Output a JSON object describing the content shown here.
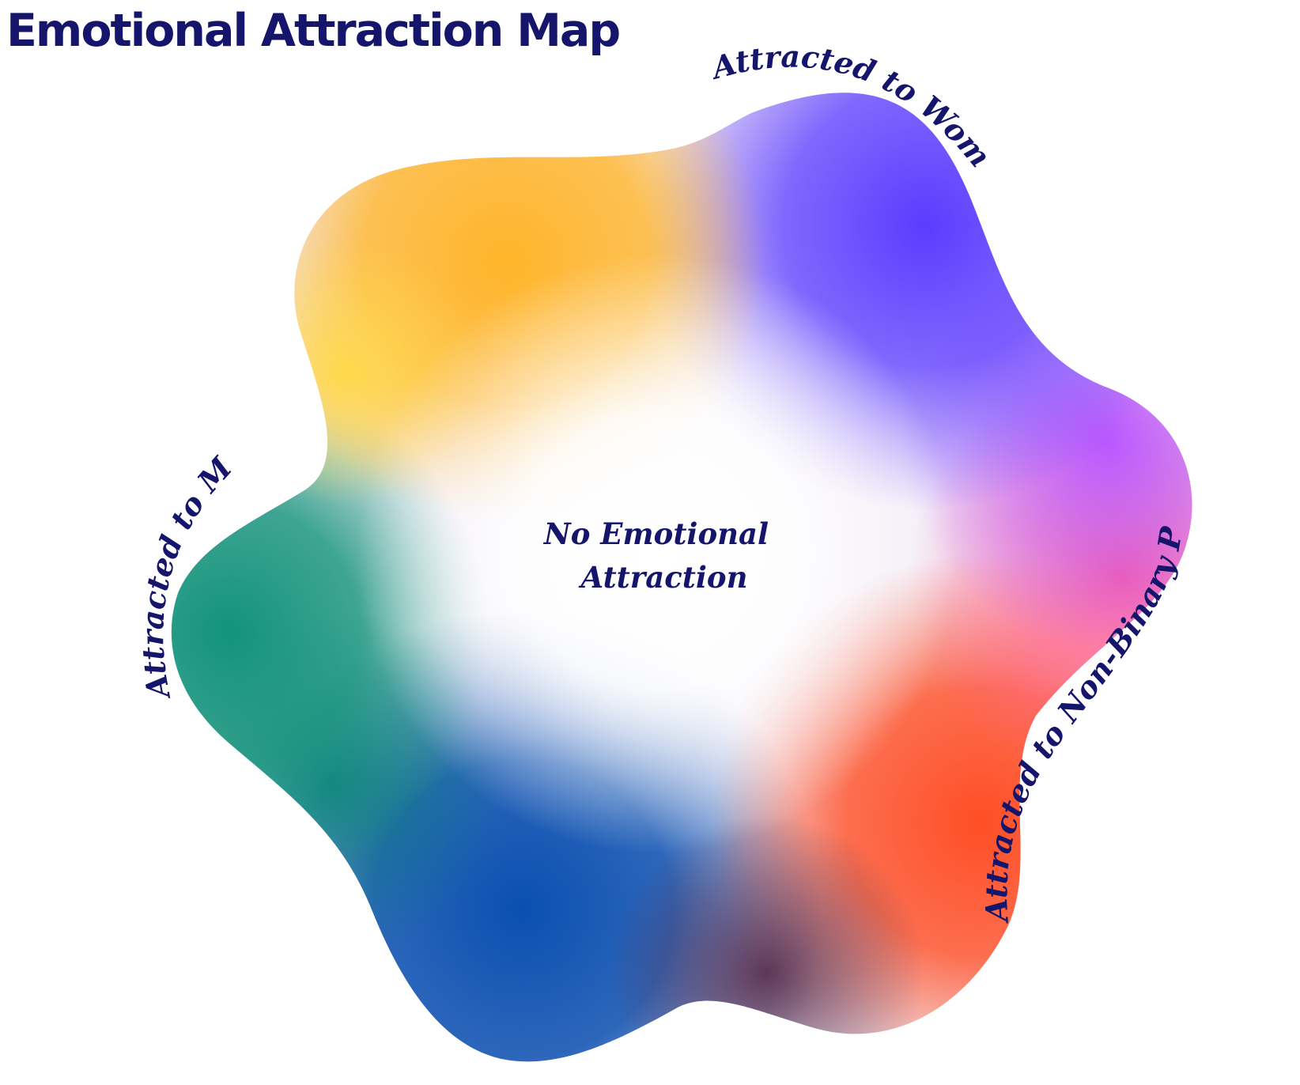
{
  "title": "Emotional Attraction Map",
  "center_label": {
    "line1": "No Emotional",
    "line2": "Attraction"
  },
  "region_labels": {
    "women": "Attracted to Women",
    "men": "Attracted to Men",
    "non_binary": "Attracted to Non-Binary People"
  },
  "colors": {
    "title_text": "#15166b",
    "men": "#12937a",
    "men_yellow": "#ffd84a",
    "orange": "#ffb52a",
    "women": "#5b3cff",
    "violet": "#b957ff",
    "pink": "#ff5f9e",
    "non_binary": "#ff4e25",
    "blue": "#0a4fb0",
    "center": "#ffffff"
  }
}
